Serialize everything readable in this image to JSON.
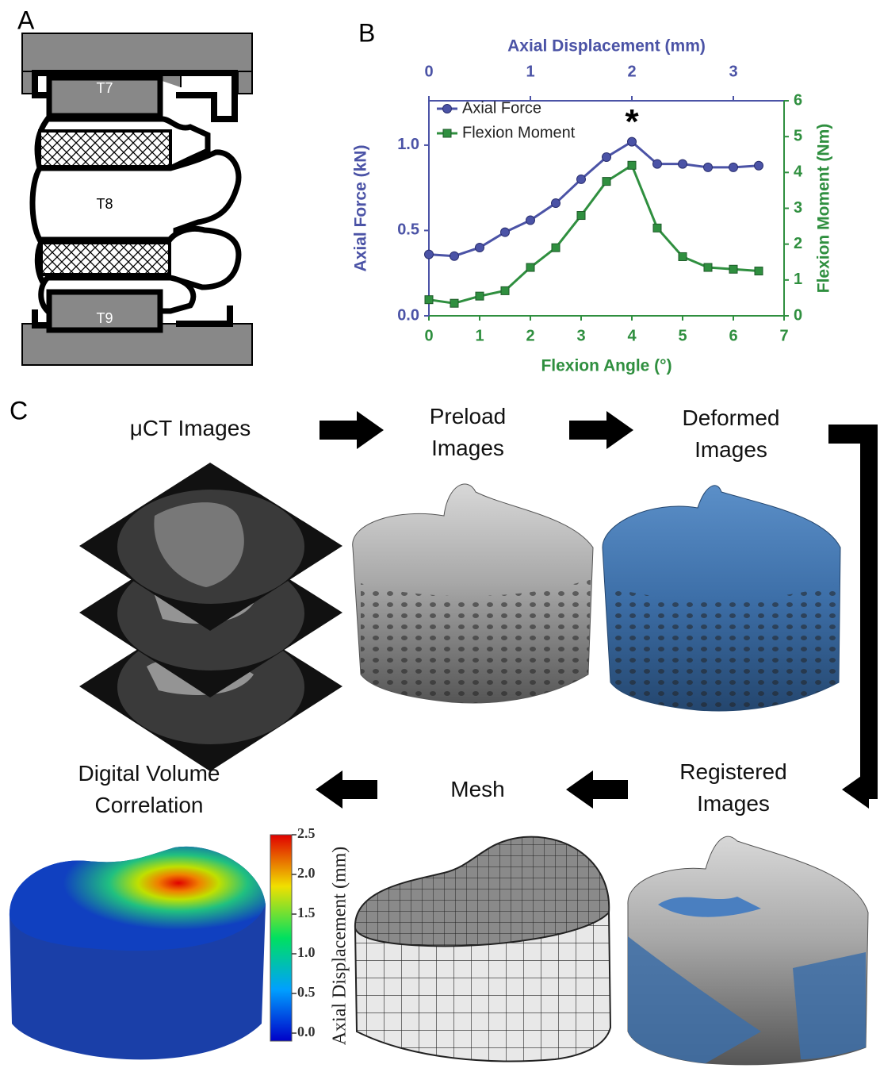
{
  "panel_labels": [
    "A",
    "B",
    "C"
  ],
  "diagram": {
    "vertebrae": [
      "T7",
      "T8",
      "T9"
    ]
  },
  "chart_data": {
    "type": "line",
    "xlabel": "Flexion Angle (°)",
    "x2label": "Axial Displacement (mm)",
    "ylabel": "Axial Force (kN)",
    "y2label": "Flexion Moment (Nm)",
    "x": [
      0,
      0.5,
      1,
      1.5,
      2,
      2.5,
      3,
      3.5,
      4,
      4.5,
      5,
      5.5,
      6,
      6.5
    ],
    "series": [
      {
        "name": "Axial Force",
        "color": "#4b53a6",
        "marker": "circle",
        "axis": "y",
        "values": [
          0.36,
          0.35,
          0.4,
          0.49,
          0.56,
          0.66,
          0.8,
          0.93,
          1.02,
          0.89,
          0.89,
          0.87,
          0.87,
          0.88
        ]
      },
      {
        "name": "Flexion Moment",
        "color": "#2f8f3f",
        "marker": "square",
        "axis": "y2",
        "values": [
          0.45,
          0.35,
          0.55,
          0.7,
          1.35,
          1.9,
          2.8,
          3.75,
          4.2,
          2.45,
          1.65,
          1.35,
          1.3,
          1.25
        ]
      }
    ],
    "xlim": [
      0,
      7
    ],
    "xticks": [
      0,
      1,
      2,
      3,
      4,
      5,
      6,
      7
    ],
    "x_color": "#2f8f3f",
    "x2lim": [
      0,
      3.5
    ],
    "x2ticks": [
      0,
      1,
      2,
      3
    ],
    "x2_color": "#4b53a6",
    "ylim": [
      0,
      1.26
    ],
    "yticks": [
      {
        "value": 0,
        "label": "0.0"
      },
      0.5,
      {
        "value": 1,
        "label": "1.0"
      }
    ],
    "y2lim": [
      0,
      6
    ],
    "y2ticks": [
      0,
      1,
      2,
      3,
      4,
      5,
      6
    ],
    "legend": "upper left",
    "grid": false,
    "annotations": [
      {
        "text": "*"
      }
    ]
  },
  "workflow": {
    "steps": [
      "μCT Images",
      "Preload Images",
      "Deformed Images",
      "Registered Images",
      "Mesh",
      "Digital Volume Correlation"
    ]
  },
  "colorbar": {
    "label": "Axial Displacement (mm)",
    "lim": [
      -0.1,
      2.5
    ],
    "ticks": [
      {
        "value": 0,
        "label": "0.0"
      },
      0.5,
      {
        "value": 1,
        "label": "1.0"
      },
      1.5,
      {
        "value": 2,
        "label": "2.0"
      },
      2.5
    ]
  }
}
